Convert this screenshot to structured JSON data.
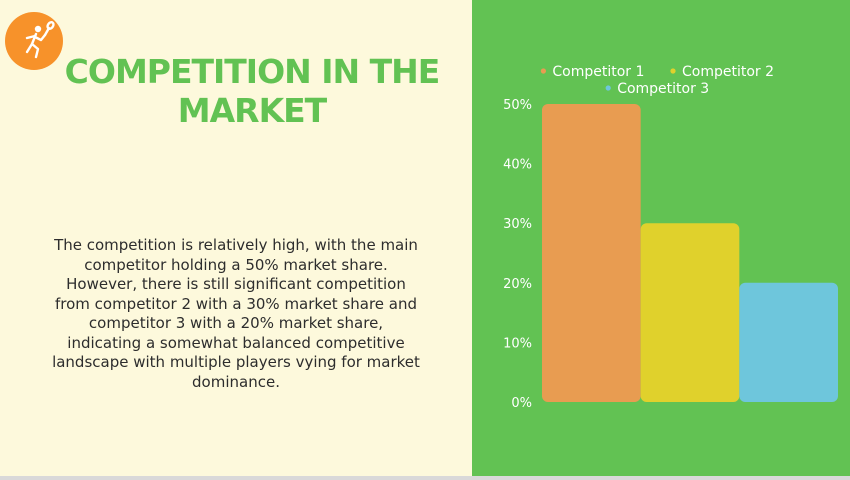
{
  "slide": {
    "title": "Competition in the Market",
    "body": "The competition is relatively high, with the main competitor holding a 50% market share. However, there is still significant competition from competitor 2 with a 30% market share and competitor 3 with a 20% market share, indicating a somewhat balanced competitive landscape with multiple players vying for market dominance.",
    "logo_icon": "badminton-player-icon"
  },
  "colors": {
    "left_background": "#fdf9dc",
    "right_background": "#62c253",
    "title": "#62c253",
    "logo": "#f7922a"
  },
  "chart_data": {
    "type": "bar",
    "title": "",
    "xlabel": "",
    "ylabel": "",
    "categories": [
      "Competitor 1",
      "Competitor 2",
      "Competitor 3"
    ],
    "values": [
      50,
      30,
      20
    ],
    "colors": [
      "#e89c51",
      "#e0d12c",
      "#6ec6dc"
    ],
    "ylim": [
      0,
      50
    ],
    "yticks": [
      0,
      10,
      20,
      30,
      40,
      50
    ],
    "ytick_labels": [
      "0%",
      "10%",
      "20%",
      "30%",
      "40%",
      "50%"
    ],
    "legend": {
      "position": "top",
      "entries": [
        "Competitor 1",
        "Competitor 2",
        "Competitor 3"
      ]
    },
    "grid": false,
    "x_tick_labels_shown": false
  }
}
